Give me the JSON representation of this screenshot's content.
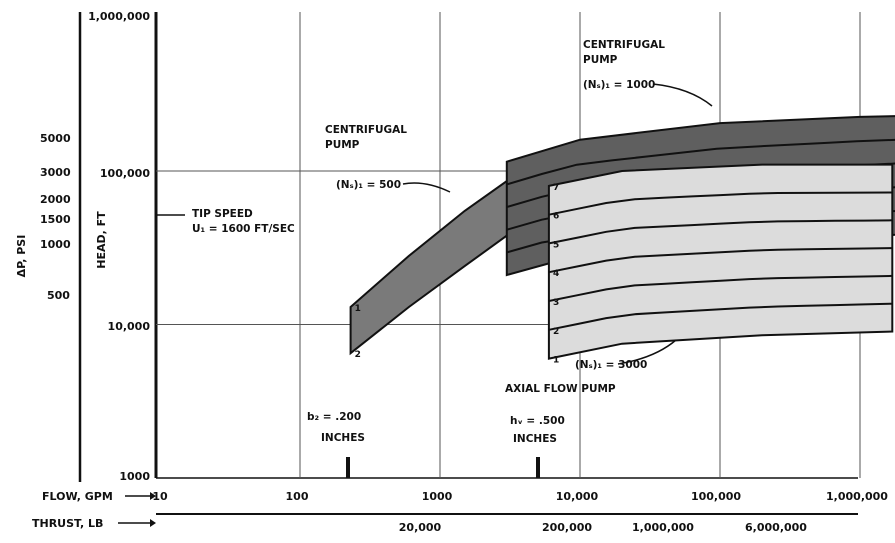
{
  "chart_data": {
    "type": "area",
    "grid": true,
    "x_axis": {
      "scale": "log",
      "flow_label": "FLOW, GPM",
      "flow_ticks": [
        "10",
        "100",
        "1000",
        "10,000",
        "100,000",
        "1,000,000",
        "1,000,000"
      ],
      "thrust_label": "THRUST, LB",
      "thrust_ticks": [
        "20,000",
        "200,000",
        "1,000,000",
        "6,000,000"
      ]
    },
    "y_axis": {
      "scale": "log",
      "head_label": "HEAD, FT",
      "head_ticks": [
        "1,000,000",
        "100,000",
        "10,000",
        "1000"
      ],
      "head_range": [
        1000,
        1000000
      ],
      "dp_label": "ΔP, PSI",
      "dp_ticks": [
        "5000",
        "3000",
        "2000",
        "1500",
        "1000",
        "500"
      ]
    },
    "regions": [
      {
        "name": "Centrifugal pump (Ns)1 = 500",
        "line_labels": [
          "1",
          "2"
        ],
        "upper": [
          [
            230,
            13000
          ],
          [
            600,
            28000
          ],
          [
            1500,
            55000
          ],
          [
            3500,
            95000
          ]
        ],
        "lower": [
          [
            230,
            6500
          ],
          [
            600,
            13000
          ],
          [
            1500,
            24000
          ],
          [
            3500,
            42000
          ]
        ]
      },
      {
        "name": "Centrifugal pump (Ns)1 = 1000",
        "line_labels": [
          "6",
          "4",
          "5",
          "3",
          "2",
          "1"
        ],
        "upper": [
          [
            3000,
            115000
          ],
          [
            10000,
            160000
          ],
          [
            100000,
            205000
          ],
          [
            1000000,
            225000
          ],
          [
            3000000,
            230000
          ]
        ],
        "lower": [
          [
            3000,
            21000
          ],
          [
            6000,
            25000
          ],
          [
            3000000,
            40000
          ]
        ]
      },
      {
        "name": "Axial flow pump (Ns)1 = 3000",
        "line_labels": [
          "7",
          "6",
          "5",
          "4",
          "3",
          "2",
          "1"
        ],
        "upper": [
          [
            6000,
            80000
          ],
          [
            20000,
            100000
          ],
          [
            200000,
            110000
          ],
          [
            1700000,
            110000
          ]
        ],
        "lower": [
          [
            6000,
            6000
          ],
          [
            20000,
            7500
          ],
          [
            200000,
            8500
          ],
          [
            1700000,
            9000
          ]
        ]
      }
    ],
    "annotations": {
      "tip_speed_1": "TIP SPEED",
      "tip_speed_2": "U₁ = 1600 FT/SEC",
      "cent1_title_1": "CENTRIFUGAL",
      "cent1_title_2": "PUMP",
      "cent1_ns": "(Nₛ)₁ = 500",
      "cent2_title_1": "CENTRIFUGAL",
      "cent2_title_2": "PUMP",
      "cent2_ns": "(Nₛ)₁ = 1000",
      "axial_ns": "(Nₛ)₁ = 3000",
      "axial_title": "AXIAL FLOW PUMP",
      "b2_1": "b₂ = .200",
      "b2_2": "INCHES",
      "hv_1": "hᵥ = .500",
      "hv_2": "INCHES"
    }
  }
}
